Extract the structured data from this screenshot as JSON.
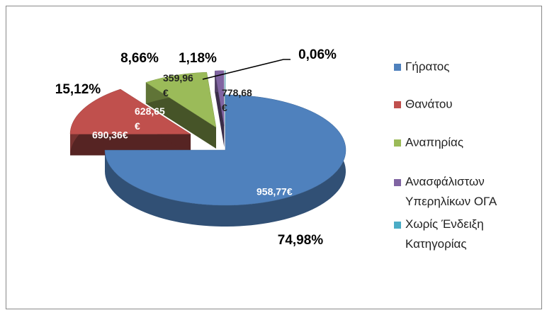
{
  "chart_data": {
    "type": "pie",
    "categories": [
      "Γήρατος",
      "Θανάτου",
      "Αναπηρίας",
      "Ανασφάλιστων Υπερηλίκων ΟΓΑ",
      "Χωρίς Ένδειξη Κατηγορίας"
    ],
    "values": [
      74.98,
      15.12,
      8.66,
      1.18,
      0.06
    ],
    "value_labels": [
      "74,98%",
      "15,12%",
      "8,66%",
      "1,18%",
      "0,06%"
    ],
    "amount_labels": [
      "958,77€",
      "690,36€",
      "628,65 €",
      "359,96 €",
      "778,68 €"
    ],
    "colors": [
      "#4f81bd",
      "#c0504d",
      "#9bbb59",
      "#8064a2",
      "#4bacc6"
    ],
    "legend": "right"
  }
}
